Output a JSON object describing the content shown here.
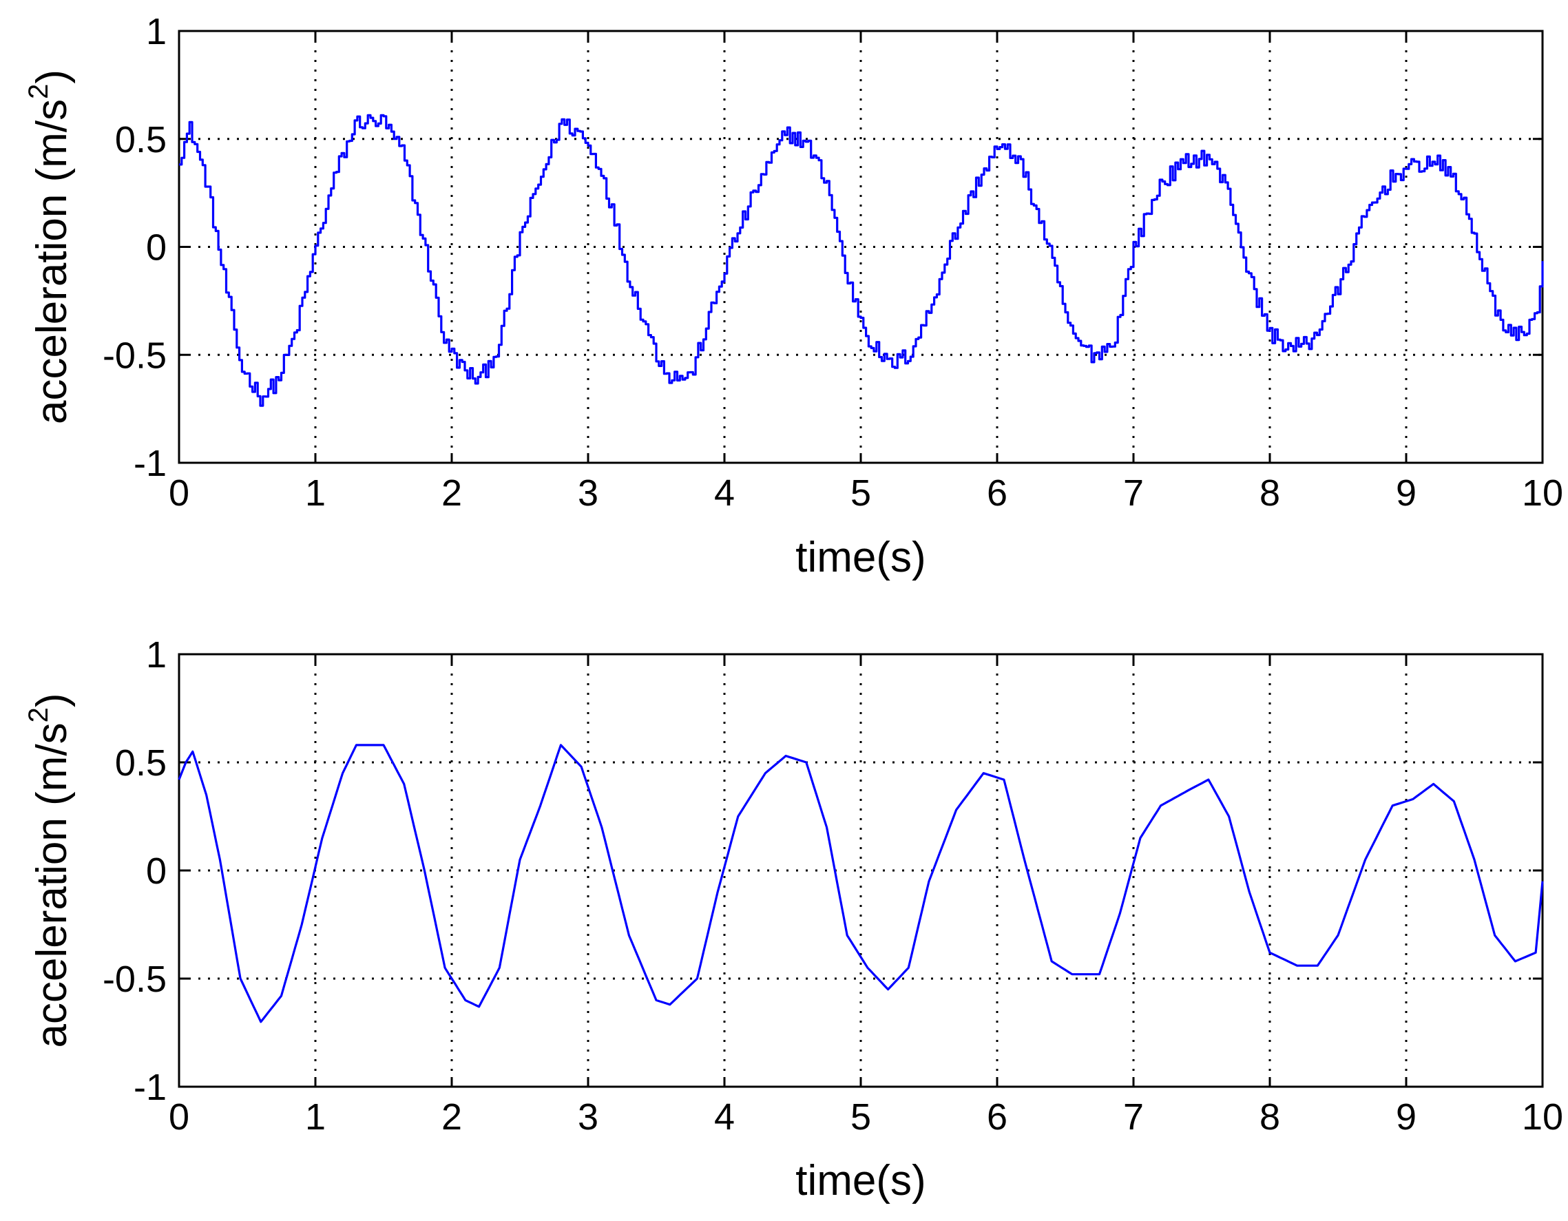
{
  "chart_data": [
    {
      "type": "line",
      "panel": "top",
      "xlabel": "time(s)",
      "ylabel_main": "acceleration  (m/s",
      "ylabel_sup": "2",
      "ylabel_close": ")",
      "xlim": [
        0,
        10
      ],
      "ylim": [
        -1,
        1
      ],
      "xticks": [
        "0",
        "1",
        "2",
        "3",
        "4",
        "5",
        "6",
        "7",
        "8",
        "9",
        "10"
      ],
      "yticks": [
        "-1",
        "-0.5",
        "0",
        "0.5",
        "1"
      ],
      "grid": true,
      "line_color": "#0000ff",
      "noise_level": 0.04,
      "series": [
        {
          "x": [
            0,
            0.08,
            0.2,
            0.3,
            0.45,
            0.6,
            0.72,
            0.85,
            1.0,
            1.15,
            1.3,
            1.5,
            1.65,
            1.8,
            1.95,
            2.1,
            2.2,
            2.35,
            2.5,
            2.65,
            2.8,
            2.95,
            3.1,
            3.3,
            3.5,
            3.6,
            3.75,
            3.9,
            4.05,
            4.25,
            4.45,
            4.6,
            4.75,
            4.9,
            5.05,
            5.2,
            5.35,
            5.5,
            5.65,
            5.85,
            6.0,
            6.15,
            6.35,
            6.55,
            6.7,
            6.85,
            7.0,
            7.2,
            7.4,
            7.55,
            7.7,
            7.85,
            8.0,
            8.15,
            8.3,
            8.5,
            8.7,
            8.9,
            9.05,
            9.2,
            9.35,
            9.5,
            9.65,
            9.8,
            9.95,
            10.0
          ],
          "y": [
            0.42,
            0.55,
            0.3,
            -0.05,
            -0.55,
            -0.7,
            -0.62,
            -0.4,
            0.0,
            0.35,
            0.58,
            0.58,
            0.42,
            0.0,
            -0.45,
            -0.58,
            -0.62,
            -0.45,
            0.05,
            0.32,
            0.58,
            0.52,
            0.35,
            -0.15,
            -0.5,
            -0.6,
            -0.6,
            -0.3,
            0.0,
            0.3,
            0.53,
            0.48,
            0.3,
            -0.15,
            -0.42,
            -0.55,
            -0.5,
            -0.3,
            0.0,
            0.3,
            0.46,
            0.42,
            0.05,
            -0.42,
            -0.5,
            -0.45,
            0.0,
            0.3,
            0.4,
            0.42,
            0.25,
            -0.15,
            -0.4,
            -0.47,
            -0.44,
            -0.2,
            0.15,
            0.33,
            0.37,
            0.4,
            0.32,
            0.05,
            -0.3,
            -0.42,
            -0.33,
            -0.05
          ]
        }
      ]
    },
    {
      "type": "line",
      "panel": "bottom",
      "xlabel": "time(s)",
      "ylabel_main": "acceleration  (m/s",
      "ylabel_sup": "2",
      "ylabel_close": ")",
      "xlim": [
        0,
        10
      ],
      "ylim": [
        -1,
        1
      ],
      "xticks": [
        "0",
        "1",
        "2",
        "3",
        "4",
        "5",
        "6",
        "7",
        "8",
        "9",
        "10"
      ],
      "yticks": [
        "-1",
        "-0.5",
        "0",
        "0.5",
        "1"
      ],
      "grid": true,
      "line_color": "#0000ff",
      "noise_level": 0,
      "series": [
        {
          "x": [
            0,
            0.05,
            0.1,
            0.2,
            0.3,
            0.45,
            0.6,
            0.75,
            0.9,
            1.05,
            1.2,
            1.3,
            1.5,
            1.65,
            1.8,
            1.95,
            2.1,
            2.2,
            2.35,
            2.5,
            2.65,
            2.8,
            2.95,
            3.1,
            3.3,
            3.5,
            3.6,
            3.8,
            3.95,
            4.1,
            4.3,
            4.45,
            4.6,
            4.75,
            4.9,
            5.05,
            5.2,
            5.35,
            5.5,
            5.7,
            5.9,
            6.05,
            6.2,
            6.4,
            6.55,
            6.75,
            6.9,
            7.05,
            7.2,
            7.4,
            7.55,
            7.7,
            7.85,
            8.0,
            8.2,
            8.35,
            8.5,
            8.7,
            8.9,
            9.05,
            9.2,
            9.35,
            9.5,
            9.65,
            9.8,
            9.95,
            10.0
          ],
          "y": [
            0.42,
            0.5,
            0.55,
            0.35,
            0.05,
            -0.5,
            -0.7,
            -0.58,
            -0.25,
            0.15,
            0.45,
            0.58,
            0.58,
            0.4,
            0.0,
            -0.45,
            -0.6,
            -0.63,
            -0.45,
            0.05,
            0.3,
            0.58,
            0.48,
            0.2,
            -0.3,
            -0.6,
            -0.62,
            -0.5,
            -0.1,
            0.25,
            0.45,
            0.53,
            0.5,
            0.2,
            -0.3,
            -0.45,
            -0.55,
            -0.45,
            -0.05,
            0.28,
            0.45,
            0.42,
            0.05,
            -0.42,
            -0.48,
            -0.48,
            -0.2,
            0.15,
            0.3,
            0.37,
            0.42,
            0.25,
            -0.1,
            -0.38,
            -0.44,
            -0.44,
            -0.3,
            0.05,
            0.3,
            0.33,
            0.4,
            0.32,
            0.05,
            -0.3,
            -0.42,
            -0.38,
            -0.05
          ]
        }
      ]
    }
  ]
}
